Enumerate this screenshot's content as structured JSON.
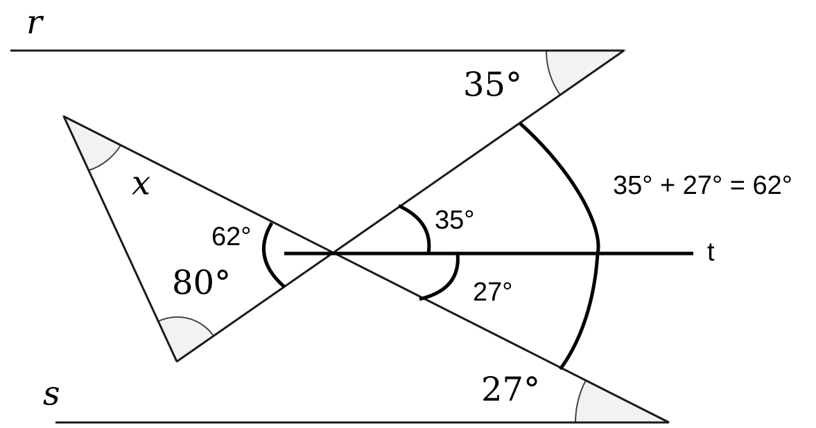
{
  "lines": {
    "r": "r",
    "s": "s",
    "t": "t"
  },
  "given_angles": {
    "x": "x",
    "top": "35°",
    "left": "80°",
    "bottom": "27°"
  },
  "marked_angles": {
    "vertical": "62°",
    "upper": "35°",
    "lower": "27°"
  },
  "equation": "35° + 27° = 62°"
}
